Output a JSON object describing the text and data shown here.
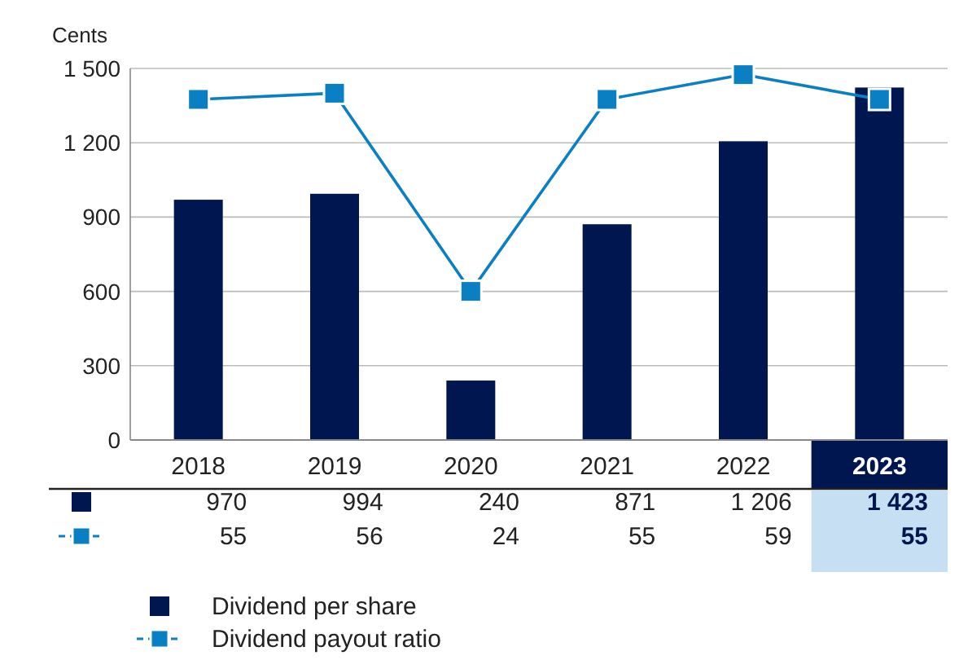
{
  "chart_data": {
    "type": "bar",
    "ylabel": "Cents",
    "categories": [
      "2018",
      "2019",
      "2020",
      "2021",
      "2022",
      "2023"
    ],
    "series": [
      {
        "name": "Dividend per share",
        "color": "#001650",
        "values": [
          970,
          994,
          240,
          871,
          1206,
          1423
        ],
        "value_labels": [
          "970",
          "994",
          "240",
          "871",
          "1 206",
          "1 423"
        ]
      },
      {
        "name": "Dividend payout ratio",
        "type": "line",
        "axis": "y2",
        "color": "#0a7fc4",
        "marker": "square",
        "values": [
          55,
          56,
          24,
          55,
          59,
          55
        ],
        "value_labels": [
          "55",
          "56",
          "24",
          "55",
          "59",
          "55"
        ]
      }
    ],
    "ylim": [
      0,
      1500
    ],
    "yticks": [
      0,
      300,
      600,
      900,
      {
        "value": 1200,
        "label": "1 200"
      },
      {
        "value": 1500,
        "label": "1 500"
      }
    ],
    "y2lim": [
      0,
      60
    ],
    "tick_labels": "y",
    "grid": "y",
    "legend": "bottom"
  }
}
